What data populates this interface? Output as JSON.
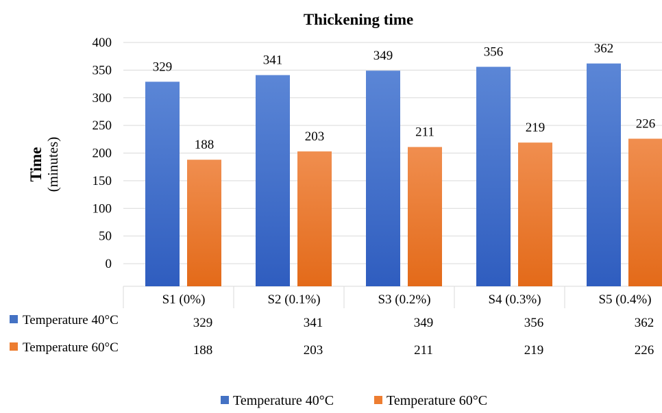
{
  "chart_data": {
    "type": "bar",
    "title": "Thickening time",
    "ylabel_main": "Time",
    "ylabel_unit": "(minutes)",
    "ylim": [
      0,
      400
    ],
    "yticks": [
      0,
      50,
      100,
      150,
      200,
      250,
      300,
      350,
      400
    ],
    "grid": true,
    "legend_position": "bottom",
    "categories": [
      "S1 (0%)",
      "S2 (0.1%)",
      "S3 (0.2%)",
      "S4 (0.3%)",
      "S5 (0.4%)"
    ],
    "series": [
      {
        "name": "Temperature 40°C",
        "values": [
          329,
          341,
          349,
          356,
          362
        ],
        "color": "#4472C4"
      },
      {
        "name": "Temperature 60°C",
        "values": [
          188,
          203,
          211,
          219,
          226
        ],
        "color": "#ED7D31"
      }
    ],
    "data_table": true
  }
}
